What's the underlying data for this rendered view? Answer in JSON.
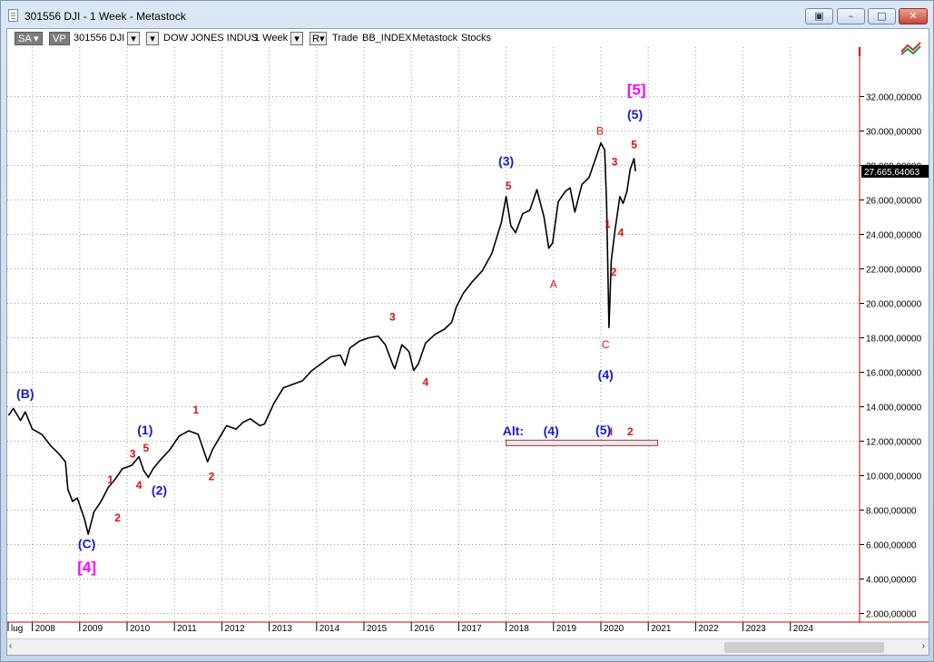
{
  "window": {
    "title": "301556 DJI - 1 Week - Metastock"
  },
  "toolbar": {
    "sa_label": "SA",
    "vp_label": "VP",
    "symbol": "301556 DJI",
    "name": "DOW JONES INDUS",
    "period": "1 Week",
    "r_label": "R",
    "trade_label": "Trade",
    "index_label": "BB_INDEX",
    "app_label": "Metastock",
    "stocks_label": "Stocks"
  },
  "colors": {
    "price": "#000000",
    "wave_major": "#1a1ac8",
    "wave_minor": "#e01010",
    "wave_primary": "#ff00ff",
    "price_tag_bg": "#000000",
    "axis_marker": "#cc0000"
  },
  "chart_data": {
    "type": "line",
    "title": "",
    "x_range": [
      2007.5,
      2025.0
    ],
    "ylim": [
      1000,
      34000
    ],
    "y_ticks": [
      "2.000,00000",
      "4.000,00000",
      "6.000,00000",
      "8.000,00000",
      "10.000,00000",
      "12.000,00000",
      "14.000,00000",
      "16.000,00000",
      "18.000,00000",
      "20.000,00000",
      "22.000,00000",
      "24.000,00000",
      "26.000,00000",
      "28.000,00000",
      "30.000,00000",
      "32.000,00000"
    ],
    "x_ticks": [
      "lug",
      "2008",
      "2009",
      "2010",
      "2011",
      "2012",
      "2013",
      "2014",
      "2015",
      "2016",
      "2017",
      "2018",
      "2019",
      "2020",
      "2021",
      "2022",
      "2023",
      "2024"
    ],
    "last_price": "27.665,64063",
    "grid": true,
    "series": [
      {
        "x": [
          2007.5,
          2007.6,
          2007.75,
          2007.85,
          2008.0,
          2008.2,
          2008.4,
          2008.55,
          2008.7,
          2008.75,
          2008.85,
          2008.95,
          2009.1,
          2009.18,
          2009.3,
          2009.45,
          2009.6,
          2009.75,
          2009.9,
          2010.1,
          2010.25,
          2010.35,
          2010.45,
          2010.55,
          2010.7,
          2010.9,
          2011.1,
          2011.3,
          2011.5,
          2011.6,
          2011.7,
          2011.8,
          2011.95,
          2012.1,
          2012.3,
          2012.45,
          2012.6,
          2012.8,
          2012.9,
          2013.1,
          2013.3,
          2013.5,
          2013.7,
          2013.9,
          2014.1,
          2014.3,
          2014.5,
          2014.6,
          2014.7,
          2014.9,
          2015.1,
          2015.3,
          2015.45,
          2015.6,
          2015.65,
          2015.8,
          2015.95,
          2016.05,
          2016.15,
          2016.3,
          2016.5,
          2016.7,
          2016.85,
          2016.95,
          2017.1,
          2017.3,
          2017.5,
          2017.7,
          2017.9,
          2018.0,
          2018.1,
          2018.2,
          2018.35,
          2018.5,
          2018.65,
          2018.8,
          2018.9,
          2018.98,
          2019.1,
          2019.25,
          2019.35,
          2019.45,
          2019.6,
          2019.75,
          2019.9,
          2020.0,
          2020.08,
          2020.12,
          2020.17,
          2020.22,
          2020.3,
          2020.4,
          2020.47,
          2020.55,
          2020.62,
          2020.7,
          2020.73
        ],
        "y": [
          13500,
          13900,
          13200,
          13700,
          12700,
          12400,
          11700,
          11300,
          10800,
          9200,
          8500,
          8700,
          7500,
          6600,
          7900,
          8500,
          9300,
          9800,
          10400,
          10600,
          11100,
          10300,
          9900,
          10400,
          10900,
          11500,
          12300,
          12600,
          12400,
          11600,
          10800,
          11500,
          12200,
          12900,
          12700,
          13100,
          13300,
          12900,
          13000,
          14200,
          15100,
          15300,
          15500,
          16100,
          16500,
          16900,
          17000,
          16400,
          17400,
          17800,
          18000,
          18100,
          17600,
          16500,
          16200,
          17600,
          17200,
          16100,
          16500,
          17700,
          18200,
          18500,
          18900,
          19800,
          20600,
          21300,
          21900,
          22900,
          24700,
          26200,
          24500,
          24100,
          25200,
          25400,
          26600,
          25000,
          23200,
          23500,
          25900,
          26500,
          26700,
          25300,
          26900,
          27300,
          28500,
          29300,
          28900,
          25800,
          18600,
          22500,
          24300,
          26200,
          25800,
          26500,
          27800,
          28400,
          27665
        ]
      }
    ]
  },
  "wave_labels": [
    {
      "text": "(B)",
      "x": 2007.85,
      "y": 14500,
      "kind": "major"
    },
    {
      "text": "(C)",
      "x": 2009.15,
      "y": 5800,
      "kind": "major"
    },
    {
      "text": "[4]",
      "x": 2009.15,
      "y": 4400,
      "kind": "primary"
    },
    {
      "text": "1",
      "x": 2009.65,
      "y": 9550,
      "kind": "minor"
    },
    {
      "text": "2",
      "x": 2009.8,
      "y": 7350,
      "kind": "minor"
    },
    {
      "text": "3",
      "x": 2010.12,
      "y": 11050,
      "kind": "minor"
    },
    {
      "text": "4",
      "x": 2010.25,
      "y": 9250,
      "kind": "minor"
    },
    {
      "text": "5",
      "x": 2010.4,
      "y": 11400,
      "kind": "minor"
    },
    {
      "text": "(1)",
      "x": 2010.38,
      "y": 12400,
      "kind": "major"
    },
    {
      "text": "(2)",
      "x": 2010.68,
      "y": 8900,
      "kind": "major"
    },
    {
      "text": "1",
      "x": 2011.45,
      "y": 13600,
      "kind": "minor"
    },
    {
      "text": "2",
      "x": 2011.78,
      "y": 9750,
      "kind": "minor"
    },
    {
      "text": "3",
      "x": 2015.6,
      "y": 19000,
      "kind": "minor"
    },
    {
      "text": "4",
      "x": 2016.3,
      "y": 15200,
      "kind": "minor"
    },
    {
      "text": "(3)",
      "x": 2018.0,
      "y": 28000,
      "kind": "major"
    },
    {
      "text": "5",
      "x": 2018.05,
      "y": 26600,
      "kind": "minor"
    },
    {
      "text": "A",
      "x": 2019.0,
      "y": 20900,
      "kind": "minor_thin"
    },
    {
      "text": "B",
      "x": 2019.98,
      "y": 29800,
      "kind": "minor_thin"
    },
    {
      "text": "C",
      "x": 2020.1,
      "y": 17400,
      "kind": "minor_thin"
    },
    {
      "text": "(4)",
      "x": 2020.1,
      "y": 15600,
      "kind": "major"
    },
    {
      "text": "1",
      "x": 2020.14,
      "y": 24400,
      "kind": "minor"
    },
    {
      "text": "2",
      "x": 2020.27,
      "y": 21600,
      "kind": "minor"
    },
    {
      "text": "3",
      "x": 2020.29,
      "y": 28000,
      "kind": "minor"
    },
    {
      "text": "4",
      "x": 2020.42,
      "y": 23900,
      "kind": "minor"
    },
    {
      "text": "5",
      "x": 2020.7,
      "y": 29000,
      "kind": "minor"
    },
    {
      "text": "(5)",
      "x": 2020.72,
      "y": 30700,
      "kind": "major"
    },
    {
      "text": "[5]",
      "x": 2020.75,
      "y": 32100,
      "kind": "primary"
    }
  ],
  "alt_box": {
    "x_start": 2018.0,
    "x_end": 2021.2,
    "y": 11900,
    "labels": [
      {
        "text": "Alt:",
        "x": 2018.15,
        "y": 12350,
        "kind": "major"
      },
      {
        "text": "(4)",
        "x": 2018.95,
        "y": 12350,
        "kind": "major"
      },
      {
        "text": "(5)",
        "x": 2020.05,
        "y": 12400,
        "kind": "major"
      },
      {
        "text": "I",
        "x": 2020.22,
        "y": 12350,
        "kind": "minor"
      },
      {
        "text": "2",
        "x": 2020.62,
        "y": 12350,
        "kind": "minor"
      }
    ]
  }
}
